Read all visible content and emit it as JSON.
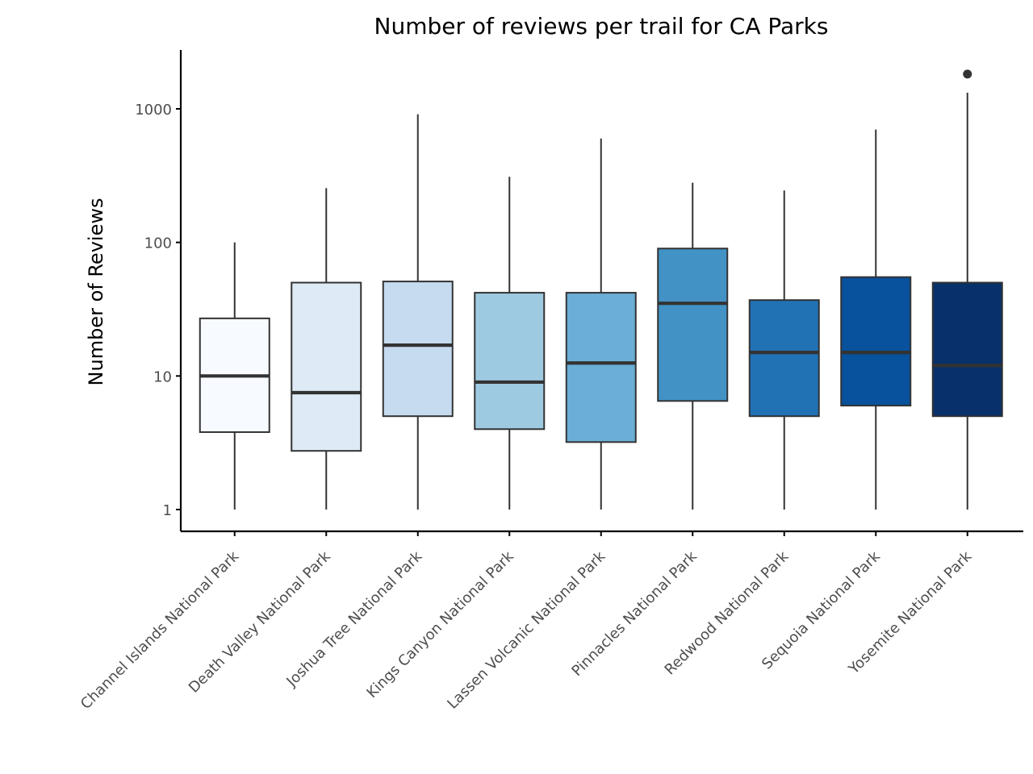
{
  "chart_data": {
    "type": "box",
    "title": "Number of reviews per trail for CA Parks",
    "xlabel": "",
    "ylabel": "Number of Reviews",
    "yscale": "log10",
    "ylim": [
      0.7,
      2500
    ],
    "yticks": [
      1,
      10,
      100,
      1000
    ],
    "ytick_labels": [
      "1",
      "10",
      "100",
      "1000"
    ],
    "grid": false,
    "legend": "none",
    "categories": [
      "Channel Islands National Park",
      "Death Valley National Park",
      "Joshua Tree National Park",
      "Kings Canyon National Park",
      "Lassen Volcanic National Park",
      "Pinnacles National Park",
      "Redwood National Park",
      "Sequoia National Park",
      "Yosemite National Park"
    ],
    "boxes": [
      {
        "min": 1,
        "q1": 3.8,
        "median": 10,
        "q3": 27,
        "max": 100,
        "outliers": []
      },
      {
        "min": 1,
        "q1": 2.75,
        "median": 7.5,
        "q3": 50,
        "max": 255,
        "outliers": []
      },
      {
        "min": 1,
        "q1": 5,
        "median": 17,
        "q3": 51,
        "max": 910,
        "outliers": []
      },
      {
        "min": 1,
        "q1": 4,
        "median": 9,
        "q3": 42,
        "max": 310,
        "outliers": []
      },
      {
        "min": 1,
        "q1": 3.2,
        "median": 12.5,
        "q3": 42,
        "max": 600,
        "outliers": []
      },
      {
        "min": 1,
        "q1": 6.5,
        "median": 35,
        "q3": 90,
        "max": 280,
        "outliers": []
      },
      {
        "min": 1,
        "q1": 5,
        "median": 15,
        "q3": 37,
        "max": 245,
        "outliers": []
      },
      {
        "min": 1,
        "q1": 6,
        "median": 15,
        "q3": 55,
        "max": 700,
        "outliers": []
      },
      {
        "min": 1,
        "q1": 5,
        "median": 12,
        "q3": 50,
        "max": 1320,
        "outliers": [
          1820
        ]
      }
    ],
    "colors": [
      "#f7fbff",
      "#deebf7",
      "#c6dbef",
      "#9ecae1",
      "#6baed6",
      "#4292c6",
      "#2171b5",
      "#08519c",
      "#08306b"
    ]
  }
}
